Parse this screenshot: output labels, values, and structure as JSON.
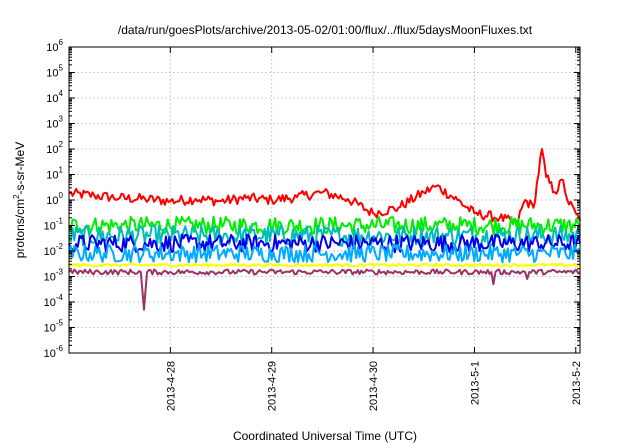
{
  "chart_data": {
    "type": "line",
    "title": "/data/run/goesPlots/archive/2013-05-02/01:00/flux/../flux/5daysMoonFluxes.txt",
    "xlabel": "Coordinated Universal Time (UTC)",
    "ylabel": "protons/cm2-s-sr-MeV",
    "ylabel_parts": {
      "before": "protons/cm",
      "sup": "2",
      "after": "-s-sr-MeV"
    },
    "yscale": "log",
    "ylim": [
      1e-06,
      1000000.0
    ],
    "xlim": [
      "2013-04-27T00:00",
      "2013-05-02T01:00"
    ],
    "grid": true,
    "x_ticks": [
      {
        "at": "2013-04-28T00:00",
        "label": "2013-4-28"
      },
      {
        "at": "2013-04-29T00:00",
        "label": "2013-4-29"
      },
      {
        "at": "2013-04-30T00:00",
        "label": "2013-4-30"
      },
      {
        "at": "2013-05-01T00:00",
        "label": "2013-5-1"
      },
      {
        "at": "2013-05-02T00:00",
        "label": "2013-5-2"
      }
    ],
    "y_ticks": [
      {
        "value": 1e-06,
        "base": "10",
        "exp": "-6"
      },
      {
        "value": 1e-05,
        "base": "10",
        "exp": "-5"
      },
      {
        "value": 0.0001,
        "base": "10",
        "exp": "-4"
      },
      {
        "value": 0.001,
        "base": "10",
        "exp": "-3"
      },
      {
        "value": 0.01,
        "base": "10",
        "exp": "-2"
      },
      {
        "value": 0.1,
        "base": "10",
        "exp": "-1"
      },
      {
        "value": 1.0,
        "base": "10",
        "exp": "0"
      },
      {
        "value": 10.0,
        "base": "10",
        "exp": "1"
      },
      {
        "value": 100.0,
        "base": "10",
        "exp": "2"
      },
      {
        "value": 1000.0,
        "base": "10",
        "exp": "3"
      },
      {
        "value": 10000.0,
        "base": "10",
        "exp": "4"
      },
      {
        "value": 100000.0,
        "base": "10",
        "exp": "5"
      },
      {
        "value": 1000000.0,
        "base": "10",
        "exp": "6"
      }
    ],
    "series": [
      {
        "color": "#ff0000",
        "noise": 0.2,
        "points": [
          [
            "2013-04-27T00:00",
            1.8
          ],
          [
            "2013-04-27T06:00",
            1.5
          ],
          [
            "2013-04-27T12:00",
            1.2
          ],
          [
            "2013-04-27T18:00",
            1.1
          ],
          [
            "2013-04-28T00:00",
            0.9
          ],
          [
            "2013-04-28T06:00",
            1.1
          ],
          [
            "2013-04-28T12:00",
            0.9
          ],
          [
            "2013-04-28T18:00",
            1.2
          ],
          [
            "2013-04-29T00:00",
            1.0
          ],
          [
            "2013-04-29T06:00",
            1.3
          ],
          [
            "2013-04-29T12:00",
            2.0
          ],
          [
            "2013-04-29T18:00",
            1.1
          ],
          [
            "2013-04-30T00:00",
            0.3
          ],
          [
            "2013-04-30T06:00",
            0.5
          ],
          [
            "2013-04-30T12:00",
            2.0
          ],
          [
            "2013-04-30T15:00",
            3.5
          ],
          [
            "2013-04-30T20:00",
            1.0
          ],
          [
            "2013-05-01T00:00",
            0.3
          ],
          [
            "2013-05-01T06:00",
            0.2
          ],
          [
            "2013-05-01T10:00",
            0.12
          ],
          [
            "2013-05-01T12:00",
            1.0
          ],
          [
            "2013-05-01T14:00",
            0.5
          ],
          [
            "2013-05-01T16:00",
            100
          ],
          [
            "2013-05-01T17:00",
            8
          ],
          [
            "2013-05-01T19:00",
            2
          ],
          [
            "2013-05-01T21:00",
            6
          ],
          [
            "2013-05-01T22:00",
            1.0
          ],
          [
            "2013-05-02T00:00",
            0.3
          ],
          [
            "2013-05-02T01:00",
            0.15
          ]
        ]
      },
      {
        "color": "#00ee00",
        "noise": 0.35,
        "points": [
          [
            "2013-04-27T00:00",
            0.1
          ],
          [
            "2013-05-02T01:00",
            0.1
          ]
        ]
      },
      {
        "color": "#00bbbb",
        "noise": 0.4,
        "points": [
          [
            "2013-04-27T00:00",
            0.04
          ],
          [
            "2013-05-02T01:00",
            0.04
          ]
        ]
      },
      {
        "color": "#0000ee",
        "noise": 0.35,
        "points": [
          [
            "2013-04-27T00:00",
            0.02
          ],
          [
            "2013-05-02T01:00",
            0.02
          ]
        ]
      },
      {
        "color": "#00aaff",
        "noise": 0.35,
        "points": [
          [
            "2013-04-27T00:00",
            0.008
          ],
          [
            "2013-05-02T01:00",
            0.008
          ]
        ]
      },
      {
        "color": "#ffff00",
        "noise": 0.06,
        "points": [
          [
            "2013-04-27T00:00",
            0.0028
          ],
          [
            "2013-05-02T01:00",
            0.0028
          ]
        ]
      },
      {
        "color": "#993366",
        "noise": 0.1,
        "points": [
          [
            "2013-04-27T00:00",
            0.0015
          ],
          [
            "2013-04-27T17:00",
            0.0015
          ],
          [
            "2013-04-27T17:45",
            5e-05
          ],
          [
            "2013-04-27T18:30",
            0.0015
          ],
          [
            "2013-05-01T04:00",
            0.0015
          ],
          [
            "2013-05-01T04:30",
            0.0005
          ],
          [
            "2013-05-01T05:00",
            0.0015
          ],
          [
            "2013-05-01T12:00",
            0.0015
          ],
          [
            "2013-05-01T12:30",
            0.0008
          ],
          [
            "2013-05-01T13:00",
            0.0015
          ],
          [
            "2013-05-02T01:00",
            0.0015
          ]
        ]
      }
    ]
  }
}
